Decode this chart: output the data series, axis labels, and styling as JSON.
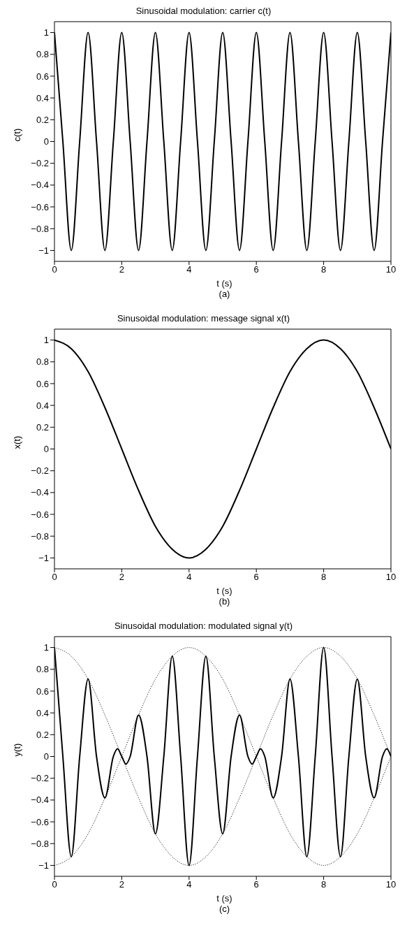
{
  "chart_data": [
    {
      "type": "line",
      "title": "Sinusoidal modulation: carrier c(t)",
      "xlabel": "t (s)",
      "ylabel": "c(t)",
      "annotations": [
        "(a)"
      ],
      "xlim": [
        0,
        10
      ],
      "xticks": [
        0,
        2,
        4,
        6,
        8,
        10
      ],
      "ylim": [
        -1.1,
        1.1
      ],
      "yticks": [
        -1,
        -0.8,
        -0.6,
        -0.4,
        -0.2,
        0,
        0.2,
        0.4,
        0.6,
        0.8,
        1
      ],
      "series": [
        {
          "color": "#000000",
          "line_style": "solid",
          "x": [
            0,
            0.25,
            0.5,
            0.75,
            1,
            1.25,
            1.5,
            1.75,
            2,
            2.25,
            2.5,
            2.75,
            3,
            3.25,
            3.5,
            3.75,
            4,
            4.25,
            4.5,
            4.75,
            5,
            5.25,
            5.5,
            5.75,
            6,
            6.25,
            6.5,
            6.75,
            7,
            7.25,
            7.5,
            7.75,
            8,
            8.25,
            8.5,
            8.75,
            9,
            9.25,
            9.5,
            9.75,
            10
          ],
          "values": [
            1,
            0,
            -1,
            0,
            1,
            0,
            -1,
            0,
            1,
            0,
            -1,
            0,
            1,
            0,
            -1,
            0,
            1,
            0,
            -1,
            0,
            1,
            0,
            -1,
            0,
            1,
            0,
            -1,
            0,
            1,
            0,
            -1,
            0,
            1,
            0,
            -1,
            0,
            1,
            0,
            -1,
            0,
            1
          ]
        }
      ]
    },
    {
      "type": "line",
      "title": "Sinusoidal modulation: message signal x(t)",
      "xlabel": "t (s)",
      "ylabel": "x(t)",
      "annotations": [
        "(b)"
      ],
      "xlim": [
        0,
        10
      ],
      "xticks": [
        0,
        2,
        4,
        6,
        8,
        10
      ],
      "ylim": [
        -1.1,
        1.1
      ],
      "yticks": [
        -1,
        -0.8,
        -0.6,
        -0.4,
        -0.2,
        0,
        0.2,
        0.4,
        0.6,
        0.8,
        1
      ],
      "series": [
        {
          "color": "#000000",
          "line_style": "solid",
          "x": [
            0,
            0.5,
            1,
            1.5,
            2,
            2.5,
            3,
            3.5,
            4,
            4.5,
            5,
            5.5,
            6,
            6.5,
            7,
            7.5,
            8,
            8.5,
            9,
            9.5,
            10
          ],
          "values": [
            1,
            0.92,
            0.71,
            0.38,
            0,
            -0.38,
            -0.71,
            -0.92,
            -1,
            -0.92,
            -0.71,
            -0.38,
            0,
            0.38,
            0.71,
            0.92,
            1,
            0.92,
            0.71,
            0.38,
            0
          ]
        }
      ]
    },
    {
      "type": "line",
      "title": "Sinusoidal modulation: modulated signal y(t)",
      "xlabel": "t (s)",
      "ylabel": "y(t)",
      "annotations": [
        "(c)"
      ],
      "xlim": [
        0,
        10
      ],
      "xticks": [
        0,
        2,
        4,
        6,
        8,
        10
      ],
      "ylim": [
        -1.1,
        1.1
      ],
      "yticks": [
        -1,
        -0.8,
        -0.6,
        -0.4,
        -0.2,
        0,
        0.2,
        0.4,
        0.6,
        0.8,
        1
      ],
      "series": [
        {
          "color": "#000000",
          "line_style": "dotted",
          "x": [
            0,
            0.5,
            1,
            1.5,
            2,
            2.5,
            3,
            3.5,
            4,
            4.5,
            5,
            5.5,
            6,
            6.5,
            7,
            7.5,
            8,
            8.5,
            9,
            9.5,
            10
          ],
          "values": [
            1,
            0.92,
            0.71,
            0.38,
            0,
            -0.38,
            -0.71,
            -0.92,
            -1,
            -0.92,
            -0.71,
            -0.38,
            0,
            0.38,
            0.71,
            0.92,
            1,
            0.92,
            0.71,
            0.38,
            0
          ]
        },
        {
          "color": "#000000",
          "line_style": "dotted",
          "x": [
            0,
            0.5,
            1,
            1.5,
            2,
            2.5,
            3,
            3.5,
            4,
            4.5,
            5,
            5.5,
            6,
            6.5,
            7,
            7.5,
            8,
            8.5,
            9,
            9.5,
            10
          ],
          "values": [
            -1,
            -0.92,
            -0.71,
            -0.38,
            0,
            0.38,
            0.71,
            0.92,
            1,
            0.92,
            0.71,
            0.38,
            0,
            -0.38,
            -0.71,
            -0.92,
            -1,
            -0.92,
            -0.71,
            -0.38,
            0
          ]
        },
        {
          "color": "#000000",
          "line_style": "solid",
          "x": [
            0,
            0.25,
            0.5,
            0.75,
            1,
            1.25,
            1.5,
            1.75,
            1.875,
            2,
            2.125,
            2.25,
            2.5,
            2.75,
            3,
            3.25,
            3.5,
            3.75,
            4,
            4.25,
            4.5,
            4.75,
            5,
            5.25,
            5.5,
            5.75,
            5.875,
            6,
            6.125,
            6.25,
            6.5,
            6.75,
            7,
            7.25,
            7.5,
            7.75,
            8,
            8.25,
            8.5,
            8.75,
            9,
            9.25,
            9.5,
            9.75,
            9.875,
            10
          ],
          "values": [
            1,
            0,
            -0.92,
            0,
            0.71,
            0,
            -0.38,
            0,
            0.07,
            0,
            -0.07,
            0,
            0.38,
            0,
            -0.71,
            0,
            0.92,
            0,
            -1,
            0,
            0.92,
            0,
            -0.71,
            0,
            0.38,
            0,
            -0.07,
            0,
            0.07,
            0,
            -0.38,
            0,
            0.71,
            0,
            -0.92,
            0,
            1,
            0,
            -0.92,
            0,
            0.71,
            0,
            -0.38,
            0,
            0.07,
            0
          ]
        }
      ]
    }
  ]
}
